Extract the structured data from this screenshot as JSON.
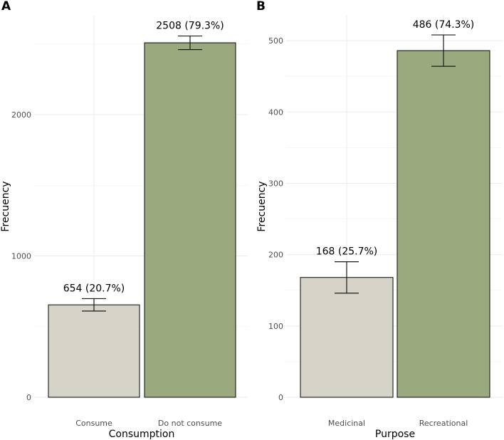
{
  "chart_data": [
    {
      "panel": "A",
      "type": "bar",
      "categories": [
        "Consume",
        "Do not consume"
      ],
      "values": [
        654,
        2508
      ],
      "error_low": [
        610,
        2460
      ],
      "error_high": [
        698,
        2556
      ],
      "data_labels": [
        "654 (20.7%)",
        "2508 (79.3%)"
      ],
      "colors": [
        "#d6d4c8",
        "#9aaa7e"
      ],
      "xlabel": "Consumption",
      "ylabel": "Frecuency",
      "ylim": [
        0,
        2700
      ],
      "yticks": [
        0,
        1000,
        2000
      ],
      "ytick_labels": [
        "0",
        "1000",
        "2000"
      ],
      "grid": true
    },
    {
      "panel": "B",
      "type": "bar",
      "categories": [
        "Medicinal",
        "Recreational"
      ],
      "values": [
        168,
        486
      ],
      "error_low": [
        146,
        464
      ],
      "error_high": [
        190,
        508
      ],
      "data_labels": [
        "168 (25.7%)",
        "486 (74.3%)"
      ],
      "colors": [
        "#d6d4c8",
        "#9aaa7e"
      ],
      "xlabel": "Purpose",
      "ylabel": "Frecuency",
      "ylim": [
        0,
        535
      ],
      "yticks": [
        0,
        100,
        200,
        300,
        400,
        500
      ],
      "ytick_labels": [
        "0",
        "100",
        "200",
        "300",
        "400",
        "500"
      ],
      "grid": true
    }
  ]
}
